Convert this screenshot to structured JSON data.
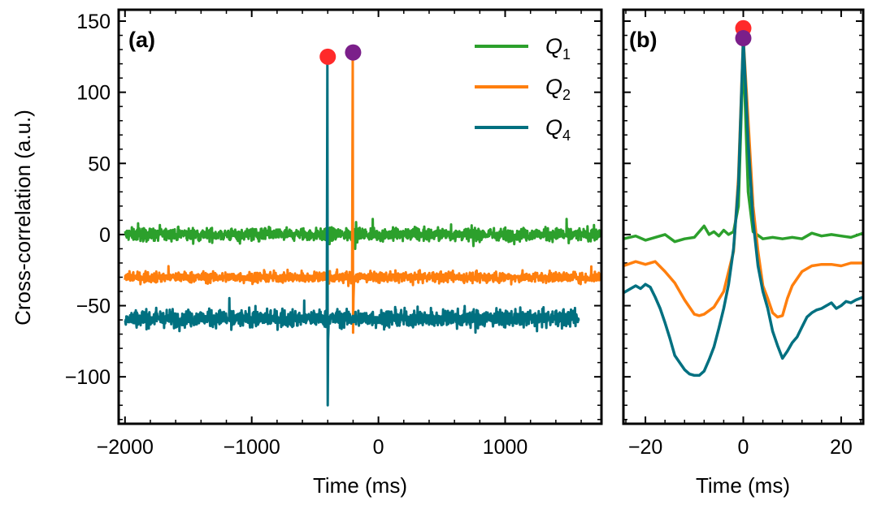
{
  "chart_data": [
    {
      "panel_label": "(a)",
      "type": "line",
      "xlabel": "Time (ms)",
      "ylabel": "Cross-correlation (a.u.)",
      "xlim": [
        -2050,
        1760
      ],
      "ylim": [
        -133,
        158
      ],
      "xticks": [
        -2000,
        -1000,
        0,
        1000
      ],
      "xtick_labels": [
        "−2000",
        "−1000",
        "0",
        "1000"
      ],
      "yticks": [
        -100,
        -50,
        0,
        50,
        100,
        150
      ],
      "ytick_labels": [
        "−100",
        "−50",
        "0",
        "50",
        "100",
        "150"
      ],
      "legend": {
        "placement": "top-right",
        "entries": [
          {
            "symbol": "Q",
            "sub": "1"
          },
          {
            "symbol": "Q",
            "sub": "2"
          },
          {
            "symbol": "Q",
            "sub": "4"
          }
        ]
      },
      "series": [
        {
          "color": "#2ca02c",
          "baseline": 0,
          "noise": 3.2,
          "x_start": -2000,
          "x_end": 1760,
          "spikes": []
        },
        {
          "color": "#ff7f0e",
          "baseline": -30,
          "noise": 2.6,
          "x_start": -2000,
          "x_end": 1760,
          "spikes": [
            {
              "x": -200,
              "peak": 128,
              "dip": -69
            }
          ]
        },
        {
          "color": "#007080",
          "baseline": -59,
          "noise": 4.2,
          "x_start": -2000,
          "x_end": 1580,
          "spikes": [
            {
              "x": -400,
              "peak": 125,
              "dip": -120
            }
          ]
        }
      ],
      "markers": [
        {
          "x": -400,
          "y": 125,
          "color": "#ff2a2a"
        },
        {
          "x": -200,
          "y": 128,
          "color": "#7b1f8a"
        }
      ]
    },
    {
      "panel_label": "(b)",
      "type": "line",
      "xlabel": "Time (ms)",
      "xlim": [
        -24.5,
        24.5
      ],
      "ylim": [
        -133,
        158
      ],
      "xticks": [
        -20,
        0,
        20
      ],
      "xtick_labels": [
        "−20",
        "0",
        "20"
      ],
      "yticks": [
        -100,
        -50,
        0,
        50,
        100,
        150
      ],
      "series": [
        {
          "color": "#2ca02c",
          "points": [
            [
              -24.5,
              -3
            ],
            [
              -22,
              -1
            ],
            [
              -20,
              -4
            ],
            [
              -18,
              -2
            ],
            [
              -16,
              0
            ],
            [
              -14,
              -5
            ],
            [
              -12,
              -3
            ],
            [
              -10,
              -2
            ],
            [
              -8,
              6
            ],
            [
              -7,
              0
            ],
            [
              -6,
              2
            ],
            [
              -5,
              -1
            ],
            [
              -4,
              3
            ],
            [
              -3,
              0
            ],
            [
              -2,
              2
            ],
            [
              -1,
              20
            ],
            [
              0,
              130
            ],
            [
              1,
              30
            ],
            [
              2,
              2
            ],
            [
              4,
              -3
            ],
            [
              6,
              -2
            ],
            [
              8,
              -3
            ],
            [
              10,
              -2
            ],
            [
              12,
              -3
            ],
            [
              14,
              1
            ],
            [
              16,
              -1
            ],
            [
              18,
              0
            ],
            [
              20,
              -1
            ],
            [
              22,
              -2
            ],
            [
              24.5,
              1
            ]
          ]
        },
        {
          "color": "#ff7f0e",
          "points": [
            [
              -24.5,
              -22
            ],
            [
              -22,
              -19
            ],
            [
              -20,
              -21
            ],
            [
              -18,
              -19
            ],
            [
              -16,
              -26
            ],
            [
              -14,
              -34
            ],
            [
              -12,
              -46
            ],
            [
              -10,
              -56
            ],
            [
              -9,
              -57
            ],
            [
              -8,
              -56
            ],
            [
              -6,
              -51
            ],
            [
              -4,
              -40
            ],
            [
              -2,
              -12
            ],
            [
              -1,
              40
            ],
            [
              0,
              138
            ],
            [
              1,
              80
            ],
            [
              2,
              20
            ],
            [
              3,
              -12
            ],
            [
              4,
              -36
            ],
            [
              5,
              -45
            ],
            [
              6,
              -55
            ],
            [
              7,
              -58
            ],
            [
              8,
              -57
            ],
            [
              9,
              -45
            ],
            [
              10,
              -36
            ],
            [
              12,
              -26
            ],
            [
              14,
              -22
            ],
            [
              16,
              -21
            ],
            [
              18,
              -21
            ],
            [
              20,
              -22
            ],
            [
              22,
              -20
            ],
            [
              24.5,
              -20
            ]
          ]
        },
        {
          "color": "#007080",
          "points": [
            [
              -24.5,
              -41
            ],
            [
              -23,
              -38
            ],
            [
              -22,
              -36
            ],
            [
              -21,
              -38
            ],
            [
              -20,
              -35
            ],
            [
              -19,
              -37
            ],
            [
              -18,
              -44
            ],
            [
              -17,
              -52
            ],
            [
              -16,
              -62
            ],
            [
              -15,
              -73
            ],
            [
              -14,
              -85
            ],
            [
              -13,
              -90
            ],
            [
              -12,
              -95
            ],
            [
              -11,
              -98
            ],
            [
              -10,
              -99
            ],
            [
              -9,
              -99
            ],
            [
              -8,
              -96
            ],
            [
              -7,
              -88
            ],
            [
              -6,
              -79
            ],
            [
              -5,
              -66
            ],
            [
              -4,
              -52
            ],
            [
              -3,
              -35
            ],
            [
              -2,
              -10
            ],
            [
              -1,
              35
            ],
            [
              0,
              138
            ],
            [
              1,
              65
            ],
            [
              2,
              10
            ],
            [
              3,
              -22
            ],
            [
              4,
              -40
            ],
            [
              5,
              -52
            ],
            [
              6,
              -68
            ],
            [
              7,
              -78
            ],
            [
              8,
              -87
            ],
            [
              9,
              -82
            ],
            [
              10,
              -76
            ],
            [
              11,
              -72
            ],
            [
              12,
              -65
            ],
            [
              13,
              -58
            ],
            [
              14,
              -55
            ],
            [
              15,
              -53
            ],
            [
              16,
              -52
            ],
            [
              17,
              -50
            ],
            [
              18,
              -48
            ],
            [
              19,
              -52
            ],
            [
              20,
              -50
            ],
            [
              21,
              -47
            ],
            [
              22,
              -48
            ],
            [
              23,
              -46
            ],
            [
              24.5,
              -44
            ]
          ]
        }
      ],
      "markers": [
        {
          "x": 0,
          "y": 145,
          "color": "#ff2a2a"
        },
        {
          "x": 0,
          "y": 138,
          "color": "#7b1f8a"
        }
      ]
    }
  ]
}
